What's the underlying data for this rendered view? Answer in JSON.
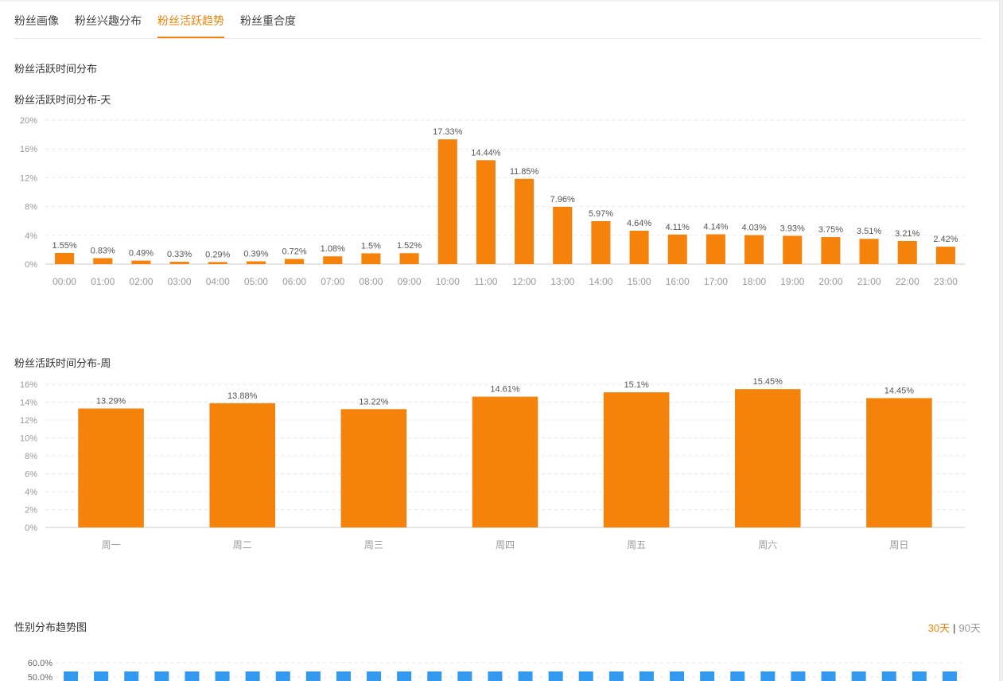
{
  "tabs": [
    {
      "label": "粉丝画像",
      "active": false
    },
    {
      "label": "粉丝兴趣分布",
      "active": false
    },
    {
      "label": "粉丝活跃趋势",
      "active": true
    },
    {
      "label": "粉丝重合度",
      "active": false
    }
  ],
  "section_title": "粉丝活跃时间分布",
  "gender_section_title": "性别分布趋势图",
  "range_switch": {
    "on": "30天",
    "sep": "|",
    "off": "90天"
  },
  "colors": {
    "bar": "#f5820b",
    "accent": "#f5820b",
    "gender_bar": "#3399ee"
  },
  "chart_data": [
    {
      "type": "bar",
      "title": "粉丝活跃时间分布-天",
      "categories": [
        "00:00",
        "01:00",
        "02:00",
        "03:00",
        "04:00",
        "05:00",
        "06:00",
        "07:00",
        "08:00",
        "09:00",
        "10:00",
        "11:00",
        "12:00",
        "13:00",
        "14:00",
        "15:00",
        "16:00",
        "17:00",
        "18:00",
        "19:00",
        "20:00",
        "21:00",
        "22:00",
        "23:00"
      ],
      "values": [
        1.55,
        0.83,
        0.49,
        0.33,
        0.29,
        0.39,
        0.72,
        1.08,
        1.5,
        1.52,
        17.33,
        14.44,
        11.85,
        7.96,
        5.97,
        4.64,
        4.11,
        4.14,
        4.03,
        3.93,
        3.75,
        3.51,
        3.21,
        2.42
      ],
      "data_labels": [
        "1.55%",
        "0.83%",
        "0.49%",
        "0.33%",
        "0.29%",
        "0.39%",
        "0.72%",
        "1.08%",
        "1.5%",
        "1.52%",
        "17.33%",
        "14.44%",
        "11.85%",
        "7.96%",
        "5.97%",
        "4.64%",
        "4.11%",
        "4.14%",
        "4.03%",
        "3.93%",
        "3.75%",
        "3.51%",
        "3.21%",
        "2.42%"
      ],
      "y_ticks": [
        "0%",
        "4%",
        "8%",
        "12%",
        "16%",
        "20%"
      ],
      "ylim": [
        0,
        20
      ],
      "grid": true
    },
    {
      "type": "bar",
      "title": "粉丝活跃时间分布-周",
      "categories": [
        "周一",
        "周二",
        "周三",
        "周四",
        "周五",
        "周六",
        "周日"
      ],
      "values": [
        13.29,
        13.88,
        13.22,
        14.61,
        15.1,
        15.45,
        14.45
      ],
      "data_labels": [
        "13.29%",
        "13.88%",
        "13.22%",
        "14.61%",
        "15.1%",
        "15.45%",
        "14.45%"
      ],
      "y_ticks": [
        "0%",
        "2%",
        "4%",
        "6%",
        "8%",
        "10%",
        "12%",
        "14%",
        "16%"
      ],
      "ylim": [
        0,
        16
      ],
      "grid": true
    },
    {
      "type": "bar",
      "title": "性别分布趋势图",
      "y_ticks": [
        "50.0%",
        "60.0%"
      ],
      "ylim": [
        50,
        60
      ],
      "bar_count": 30,
      "grid": true
    }
  ]
}
